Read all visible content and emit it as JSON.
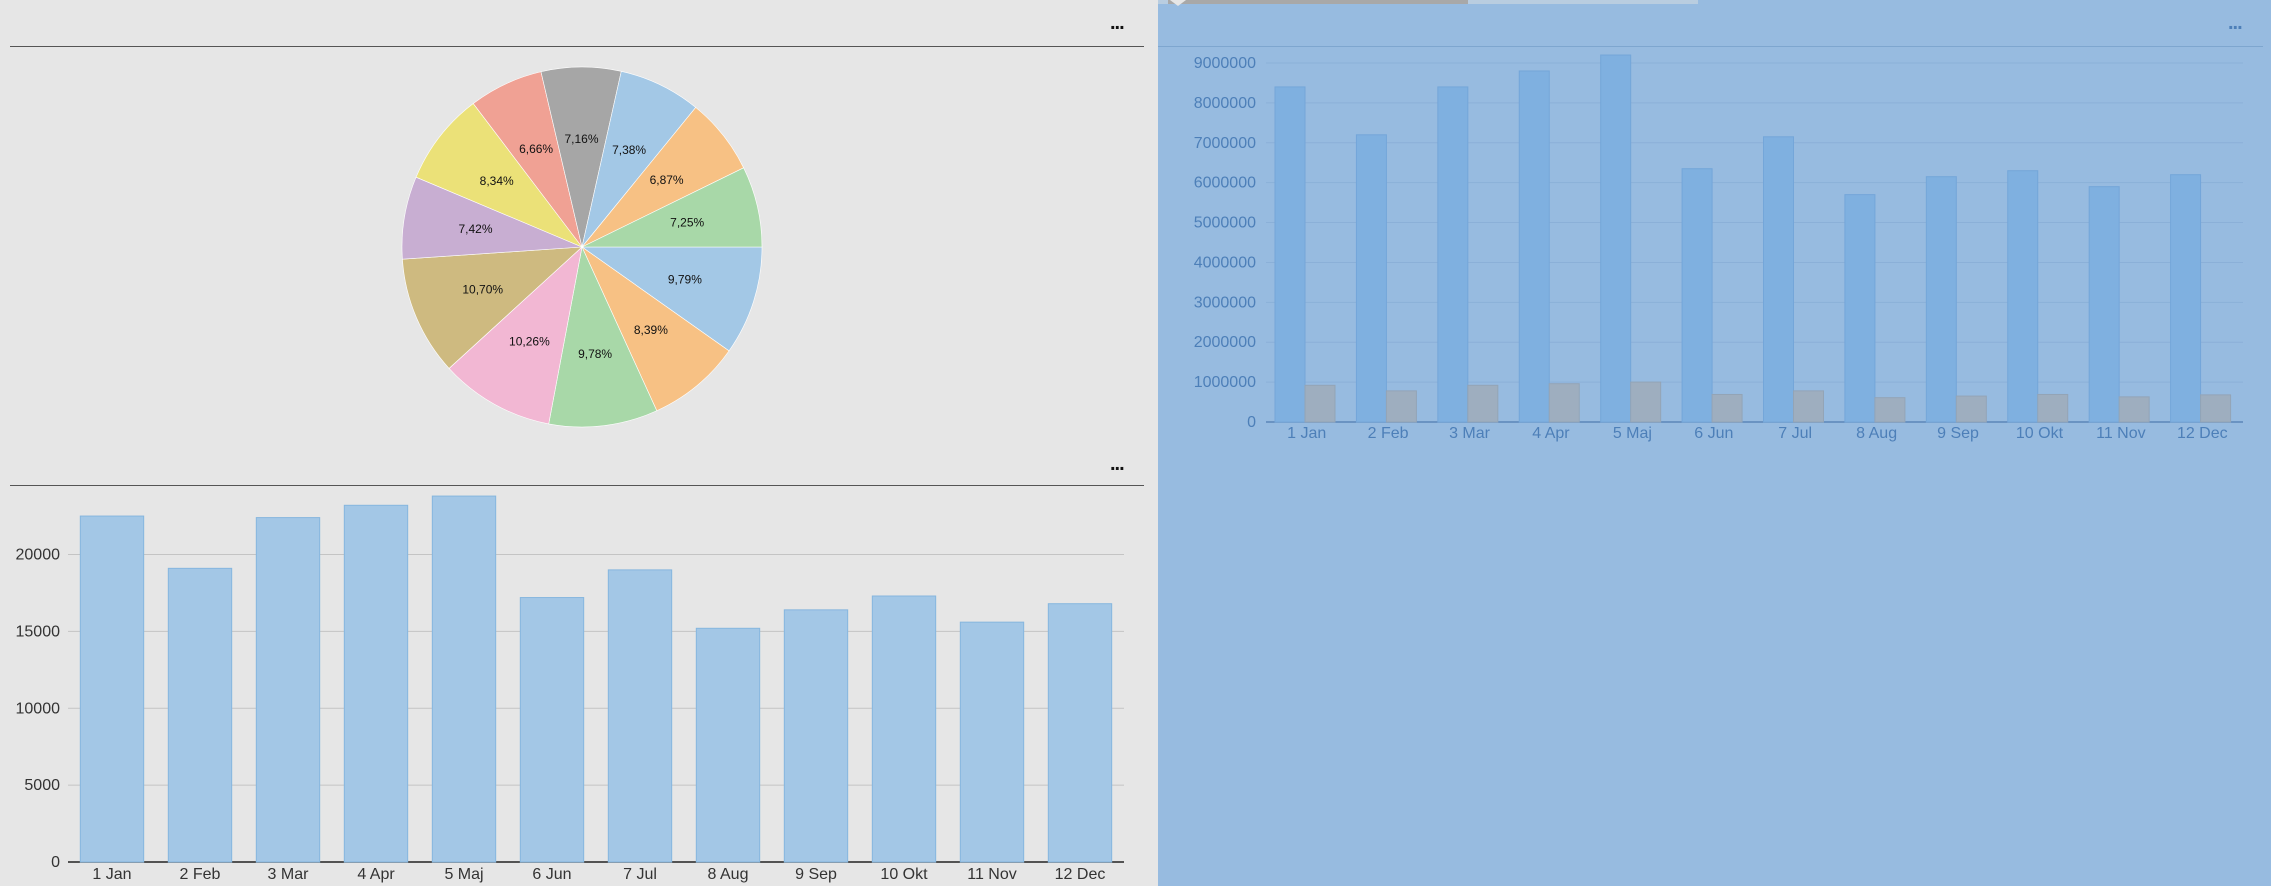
{
  "panels": {
    "pie_menu_label": "...",
    "bar_menu_label": "...",
    "grouped_menu_label": "..."
  },
  "colors": {
    "page_background": "#e6e6e6",
    "selected_panel_background": "#97bbe0",
    "bar_fill": "#a3c7e6",
    "bar_stroke": "#86b6de",
    "grouped_primary": "#7fb0e0",
    "grouped_secondary": "#9eaebf",
    "gridline": "#c4c4c4"
  },
  "chart_data": [
    {
      "type": "pie",
      "title": "",
      "labels": [
        "9,79%",
        "8,39%",
        "9,78%",
        "10,26%",
        "10,70%",
        "7,42%",
        "8,34%",
        "6,66%",
        "7,16%",
        "7,38%",
        "6,87%",
        "7,25%"
      ],
      "values": [
        9.79,
        8.39,
        9.78,
        10.26,
        10.7,
        7.42,
        8.34,
        6.66,
        7.16,
        7.38,
        6.87,
        7.25
      ],
      "colors": [
        "#a3c8e6",
        "#f7c184",
        "#a8d8a8",
        "#f2b7d3",
        "#ceba80",
        "#c8aed2",
        "#ebe178",
        "#f0a194",
        "#a6a6a6",
        "#a3c8e6",
        "#f7c184",
        "#a8d8a8"
      ],
      "start": "3 o'clock, clockwise"
    },
    {
      "type": "bar",
      "title": "",
      "xlabel": "",
      "ylabel": "",
      "categories": [
        "1 Jan",
        "2 Feb",
        "3 Mar",
        "4 Apr",
        "5 Maj",
        "6 Jun",
        "7 Jul",
        "8 Aug",
        "9 Sep",
        "10 Okt",
        "11 Nov",
        "12 Dec"
      ],
      "values": [
        22500,
        19100,
        22400,
        23200,
        23800,
        17200,
        19000,
        15200,
        16400,
        17300,
        15600,
        16800
      ],
      "ylim": [
        0,
        24000
      ],
      "yticks": [
        0,
        5000,
        10000,
        15000,
        20000
      ],
      "grid": true
    },
    {
      "type": "bar",
      "title": "",
      "xlabel": "",
      "ylabel": "",
      "categories": [
        "1 Jan",
        "2 Feb",
        "3 Mar",
        "4 Apr",
        "5 Maj",
        "6 Jun",
        "7 Jul",
        "8 Aug",
        "9 Sep",
        "10 Okt",
        "11 Nov",
        "12 Dec"
      ],
      "series": [
        {
          "values": [
            8400000,
            7200000,
            8400000,
            8800000,
            9200000,
            6350000,
            7150000,
            5700000,
            6150000,
            6300000,
            5900000,
            6200000
          ]
        },
        {
          "values": [
            920000,
            780000,
            920000,
            960000,
            1000000,
            690000,
            780000,
            610000,
            650000,
            690000,
            630000,
            680000
          ]
        }
      ],
      "ylim": [
        0,
        9000000
      ],
      "yticks": [
        0,
        1000000,
        2000000,
        3000000,
        4000000,
        5000000,
        6000000,
        7000000,
        8000000,
        9000000
      ],
      "grid": true
    }
  ]
}
